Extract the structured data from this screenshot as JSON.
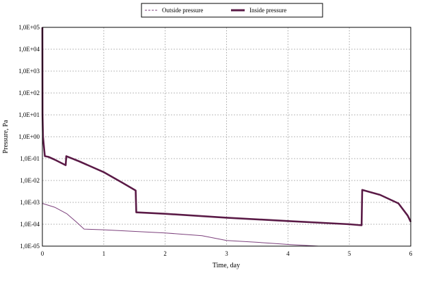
{
  "chart_data": {
    "type": "line",
    "xlabel": "Time, day",
    "ylabel": "Pressure, Pa",
    "xlim": [
      0,
      6
    ],
    "ylim_log10": [
      -5,
      5
    ],
    "y_scale": "log",
    "grid": true,
    "legend_position": "top-center",
    "x_ticks": [
      "0",
      "1",
      "2",
      "3",
      "4",
      "5",
      "6"
    ],
    "y_ticks": [
      "1,0E-05",
      "1,0E-04",
      "1,0E-03",
      "1,0E-02",
      "1,0E-01",
      "1,0E+00",
      "1,0E+01",
      "1,0E+02",
      "1,0E+03",
      "1,0E+04",
      "1,0E+05"
    ],
    "series": [
      {
        "name": "Outside pressure",
        "style": "dashed",
        "color": "#7b3f7b",
        "points": [
          [
            0,
            0.0009
          ],
          [
            0.2,
            0.0006
          ],
          [
            0.4,
            0.0003
          ],
          [
            0.55,
            0.00013
          ],
          [
            0.68,
            6e-05
          ],
          [
            1.0,
            5.6e-05
          ],
          [
            2.0,
            4e-05
          ],
          [
            2.6,
            3e-05
          ],
          [
            3.0,
            1.8e-05
          ],
          [
            3.5,
            1.5e-05
          ],
          [
            4.0,
            1.2e-05
          ],
          [
            4.5,
            1e-05
          ]
        ]
      },
      {
        "name": "Inside pressure",
        "style": "solid",
        "color": "#5a1a46",
        "points": [
          [
            0,
            100000
          ],
          [
            0.002,
            10
          ],
          [
            0.01,
            1
          ],
          [
            0.02,
            0.5
          ],
          [
            0.04,
            0.13
          ],
          [
            0.1,
            0.12
          ],
          [
            0.2,
            0.09
          ],
          [
            0.38,
            0.05
          ],
          [
            0.39,
            0.13
          ],
          [
            0.6,
            0.075
          ],
          [
            1.0,
            0.024
          ],
          [
            1.3,
            0.008
          ],
          [
            1.52,
            0.0035
          ],
          [
            1.53,
            0.00035
          ],
          [
            2.0,
            0.0003
          ],
          [
            3.0,
            0.0002
          ],
          [
            4.0,
            0.00014
          ],
          [
            5.0,
            0.0001
          ],
          [
            5.2,
            9e-05
          ],
          [
            5.21,
            0.0037
          ],
          [
            5.5,
            0.0022
          ],
          [
            5.8,
            0.0009
          ],
          [
            5.95,
            0.00025
          ],
          [
            6.0,
            0.00013
          ]
        ]
      }
    ]
  }
}
